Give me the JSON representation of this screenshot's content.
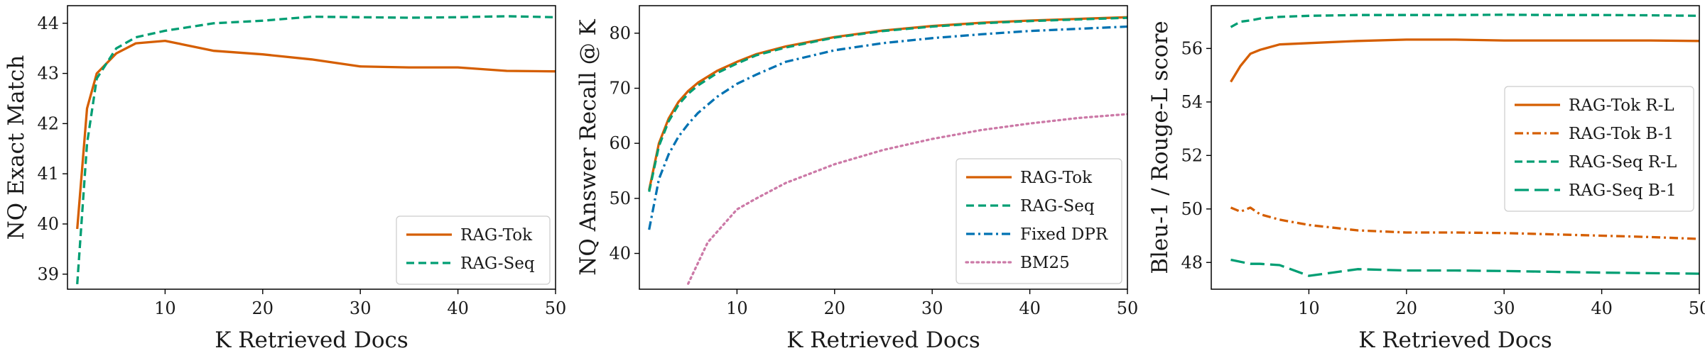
{
  "colors": {
    "rag_tok": "#d55e00",
    "rag_seq": "#009e73",
    "fixed_dpr": "#0072b2",
    "bm25": "#cc79a7"
  },
  "chart_data": [
    {
      "type": "line",
      "xlabel": "K Retrieved Docs",
      "ylabel": "NQ Exact Match",
      "xlim": [
        0,
        50
      ],
      "ylim": [
        38.7,
        44.35
      ],
      "xticks": [
        10,
        20,
        30,
        40,
        50
      ],
      "yticks": [
        39,
        40,
        41,
        42,
        43,
        44
      ],
      "legend": "bottom-right",
      "series": [
        {
          "name": "RAG-Tok",
          "color": "#d55e00",
          "dash": "solid",
          "x": [
            1,
            2,
            3,
            5,
            7,
            10,
            15,
            20,
            25,
            30,
            35,
            40,
            45,
            50
          ],
          "y": [
            39.9,
            42.3,
            43.0,
            43.4,
            43.6,
            43.65,
            43.45,
            43.38,
            43.28,
            43.14,
            43.12,
            43.12,
            43.05,
            43.04
          ]
        },
        {
          "name": "RAG-Seq",
          "color": "#009e73",
          "dash": "dashed",
          "x": [
            1,
            2,
            3,
            5,
            7,
            10,
            15,
            20,
            25,
            30,
            35,
            40,
            45,
            50
          ],
          "y": [
            38.8,
            41.6,
            42.9,
            43.5,
            43.72,
            43.85,
            44.0,
            44.05,
            44.13,
            44.12,
            44.11,
            44.12,
            44.14,
            44.12
          ]
        }
      ]
    },
    {
      "type": "line",
      "xlabel": "K Retrieved Docs",
      "ylabel": "NQ Answer Recall @ K",
      "xlim": [
        0,
        50
      ],
      "ylim": [
        33.5,
        85
      ],
      "xticks": [
        10,
        20,
        30,
        40,
        50
      ],
      "yticks": [
        40,
        50,
        60,
        70,
        80
      ],
      "legend": "bottom-right",
      "series": [
        {
          "name": "RAG-Tok",
          "color": "#d55e00",
          "dash": "solid",
          "x": [
            1,
            2,
            3,
            4,
            5,
            6,
            8,
            10,
            12,
            15,
            20,
            25,
            30,
            35,
            40,
            45,
            50
          ],
          "y": [
            51.5,
            60,
            64.5,
            67.5,
            69.5,
            71,
            73.2,
            74.8,
            76.2,
            77.6,
            79.3,
            80.5,
            81.3,
            81.9,
            82.3,
            82.6,
            82.9
          ]
        },
        {
          "name": "RAG-Seq",
          "color": "#009e73",
          "dash": "dashed",
          "x": [
            1,
            2,
            3,
            4,
            5,
            6,
            8,
            10,
            12,
            15,
            20,
            25,
            30,
            35,
            40,
            45,
            50
          ],
          "y": [
            51.2,
            59.5,
            64,
            67,
            69,
            70.5,
            72.8,
            74.5,
            76,
            77.4,
            79.2,
            80.4,
            81.2,
            81.8,
            82.2,
            82.5,
            82.8
          ]
        },
        {
          "name": "Fixed DPR",
          "color": "#0072b2",
          "dash": "dashdot",
          "x": [
            1,
            2,
            3,
            4,
            5,
            6,
            8,
            10,
            12,
            15,
            20,
            25,
            30,
            35,
            40,
            45,
            50
          ],
          "y": [
            44.3,
            53.5,
            58,
            61.2,
            63.5,
            65.5,
            68.5,
            70.8,
            72.5,
            74.8,
            76.9,
            78.2,
            79.1,
            79.8,
            80.4,
            80.8,
            81.2
          ]
        },
        {
          "name": "BM25",
          "color": "#cc79a7",
          "dash": "dotted",
          "x": [
            5,
            7,
            10,
            12,
            15,
            20,
            25,
            30,
            35,
            40,
            45,
            50
          ],
          "y": [
            34.5,
            42,
            48,
            50,
            52.8,
            56.2,
            58.8,
            60.8,
            62.4,
            63.6,
            64.6,
            65.3
          ]
        }
      ]
    },
    {
      "type": "line",
      "xlabel": "K Retrieved Docs",
      "ylabel": "Bleu-1 / Rouge-L score",
      "xlim": [
        0,
        50
      ],
      "ylim": [
        47,
        57.6
      ],
      "xticks": [
        10,
        20,
        30,
        40,
        50
      ],
      "yticks": [
        48,
        50,
        52,
        54,
        56
      ],
      "legend": "center-right",
      "series": [
        {
          "name": "RAG-Tok R-L",
          "color": "#d55e00",
          "dash": "solid",
          "x": [
            2,
            3,
            4,
            5,
            7,
            10,
            15,
            20,
            25,
            30,
            35,
            40,
            45,
            50
          ],
          "y": [
            54.75,
            55.35,
            55.8,
            55.95,
            56.15,
            56.2,
            56.28,
            56.33,
            56.33,
            56.3,
            56.3,
            56.3,
            56.3,
            56.28
          ]
        },
        {
          "name": "RAG-Tok B-1",
          "color": "#d55e00",
          "dash": "dashdot",
          "x": [
            2,
            3,
            4,
            5,
            7,
            10,
            15,
            20,
            25,
            30,
            35,
            40,
            45,
            50
          ],
          "y": [
            50.05,
            49.9,
            50.05,
            49.8,
            49.6,
            49.4,
            49.2,
            49.12,
            49.12,
            49.1,
            49.05,
            49.0,
            48.95,
            48.88
          ]
        },
        {
          "name": "RAG-Seq R-L",
          "color": "#009e73",
          "dash": "dashed",
          "x": [
            2,
            3,
            4,
            5,
            7,
            10,
            15,
            20,
            25,
            30,
            35,
            40,
            45,
            50
          ],
          "y": [
            56.8,
            57.0,
            57.05,
            57.12,
            57.18,
            57.22,
            57.25,
            57.25,
            57.25,
            57.26,
            57.25,
            57.25,
            57.24,
            57.22
          ]
        },
        {
          "name": "RAG-Seq B-1",
          "color": "#009e73",
          "dash": "longdash",
          "x": [
            2,
            4,
            5,
            7,
            10,
            12,
            15,
            20,
            25,
            30,
            35,
            40,
            45,
            50
          ],
          "y": [
            48.1,
            47.95,
            47.95,
            47.9,
            47.5,
            47.6,
            47.75,
            47.7,
            47.7,
            47.68,
            47.65,
            47.62,
            47.6,
            47.58
          ]
        }
      ]
    }
  ]
}
